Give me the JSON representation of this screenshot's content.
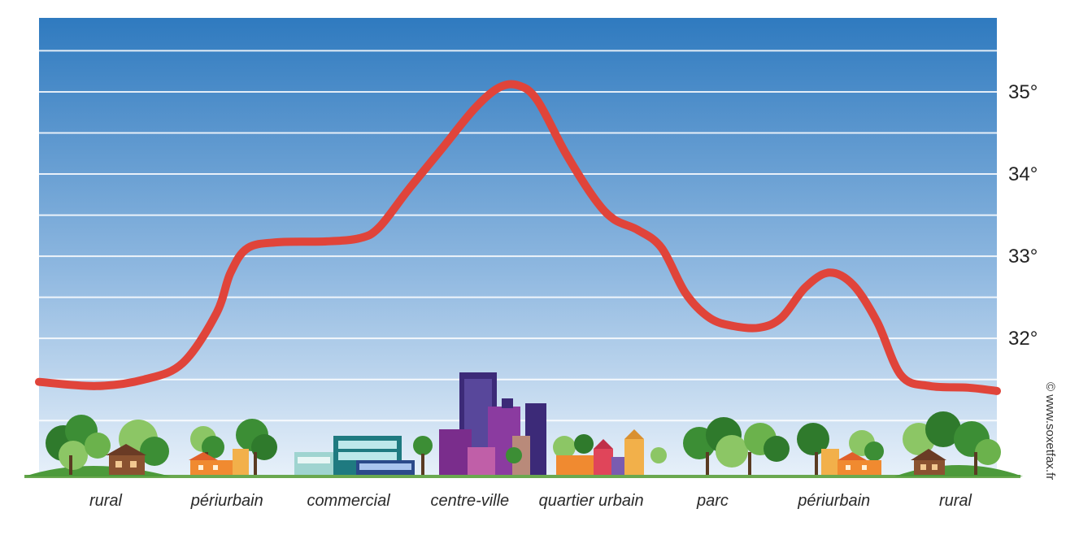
{
  "chart_data": {
    "type": "line",
    "categories": [
      "rural",
      "périurbain",
      "commercial",
      "centre-ville",
      "quartier urbain",
      "parc",
      "périurbain",
      "rural"
    ],
    "y_ticks": [
      "32°",
      "33°",
      "34°",
      "35°"
    ],
    "y_tick_values": [
      32,
      33,
      34,
      35
    ],
    "ylim": [
      30.3,
      35.9
    ],
    "x_range": [
      0,
      1
    ],
    "series": [
      {
        "color": "#e0443a",
        "points": [
          [
            0.0,
            31.47
          ],
          [
            0.06,
            31.42
          ],
          [
            0.11,
            31.5
          ],
          [
            0.15,
            31.7
          ],
          [
            0.185,
            32.3
          ],
          [
            0.2,
            32.8
          ],
          [
            0.218,
            33.1
          ],
          [
            0.25,
            33.17
          ],
          [
            0.3,
            33.18
          ],
          [
            0.335,
            33.22
          ],
          [
            0.355,
            33.35
          ],
          [
            0.385,
            33.8
          ],
          [
            0.42,
            34.3
          ],
          [
            0.455,
            34.8
          ],
          [
            0.48,
            35.05
          ],
          [
            0.5,
            35.08
          ],
          [
            0.52,
            34.9
          ],
          [
            0.55,
            34.25
          ],
          [
            0.58,
            33.7
          ],
          [
            0.6,
            33.45
          ],
          [
            0.625,
            33.32
          ],
          [
            0.65,
            33.1
          ],
          [
            0.675,
            32.55
          ],
          [
            0.7,
            32.25
          ],
          [
            0.725,
            32.15
          ],
          [
            0.752,
            32.13
          ],
          [
            0.775,
            32.25
          ],
          [
            0.8,
            32.62
          ],
          [
            0.825,
            32.8
          ],
          [
            0.85,
            32.65
          ],
          [
            0.875,
            32.2
          ],
          [
            0.9,
            31.55
          ],
          [
            0.93,
            31.42
          ],
          [
            0.97,
            31.4
          ],
          [
            1.0,
            31.36
          ]
        ]
      }
    ],
    "grid": true,
    "background": [
      "#2f7abf",
      "#e8f1fa"
    ]
  },
  "credit": "© www.soxetfax.fr",
  "colors": {
    "sky_top": "#2f7abf",
    "sky_bottom": "#e8f1fa",
    "grass": "#4c9a3a",
    "curve": "#e0443a"
  },
  "icons": [
    "tree-cluster-icon",
    "house-icon",
    "commercial-building-icon",
    "skyscraper-icon",
    "townhouse-icon"
  ]
}
